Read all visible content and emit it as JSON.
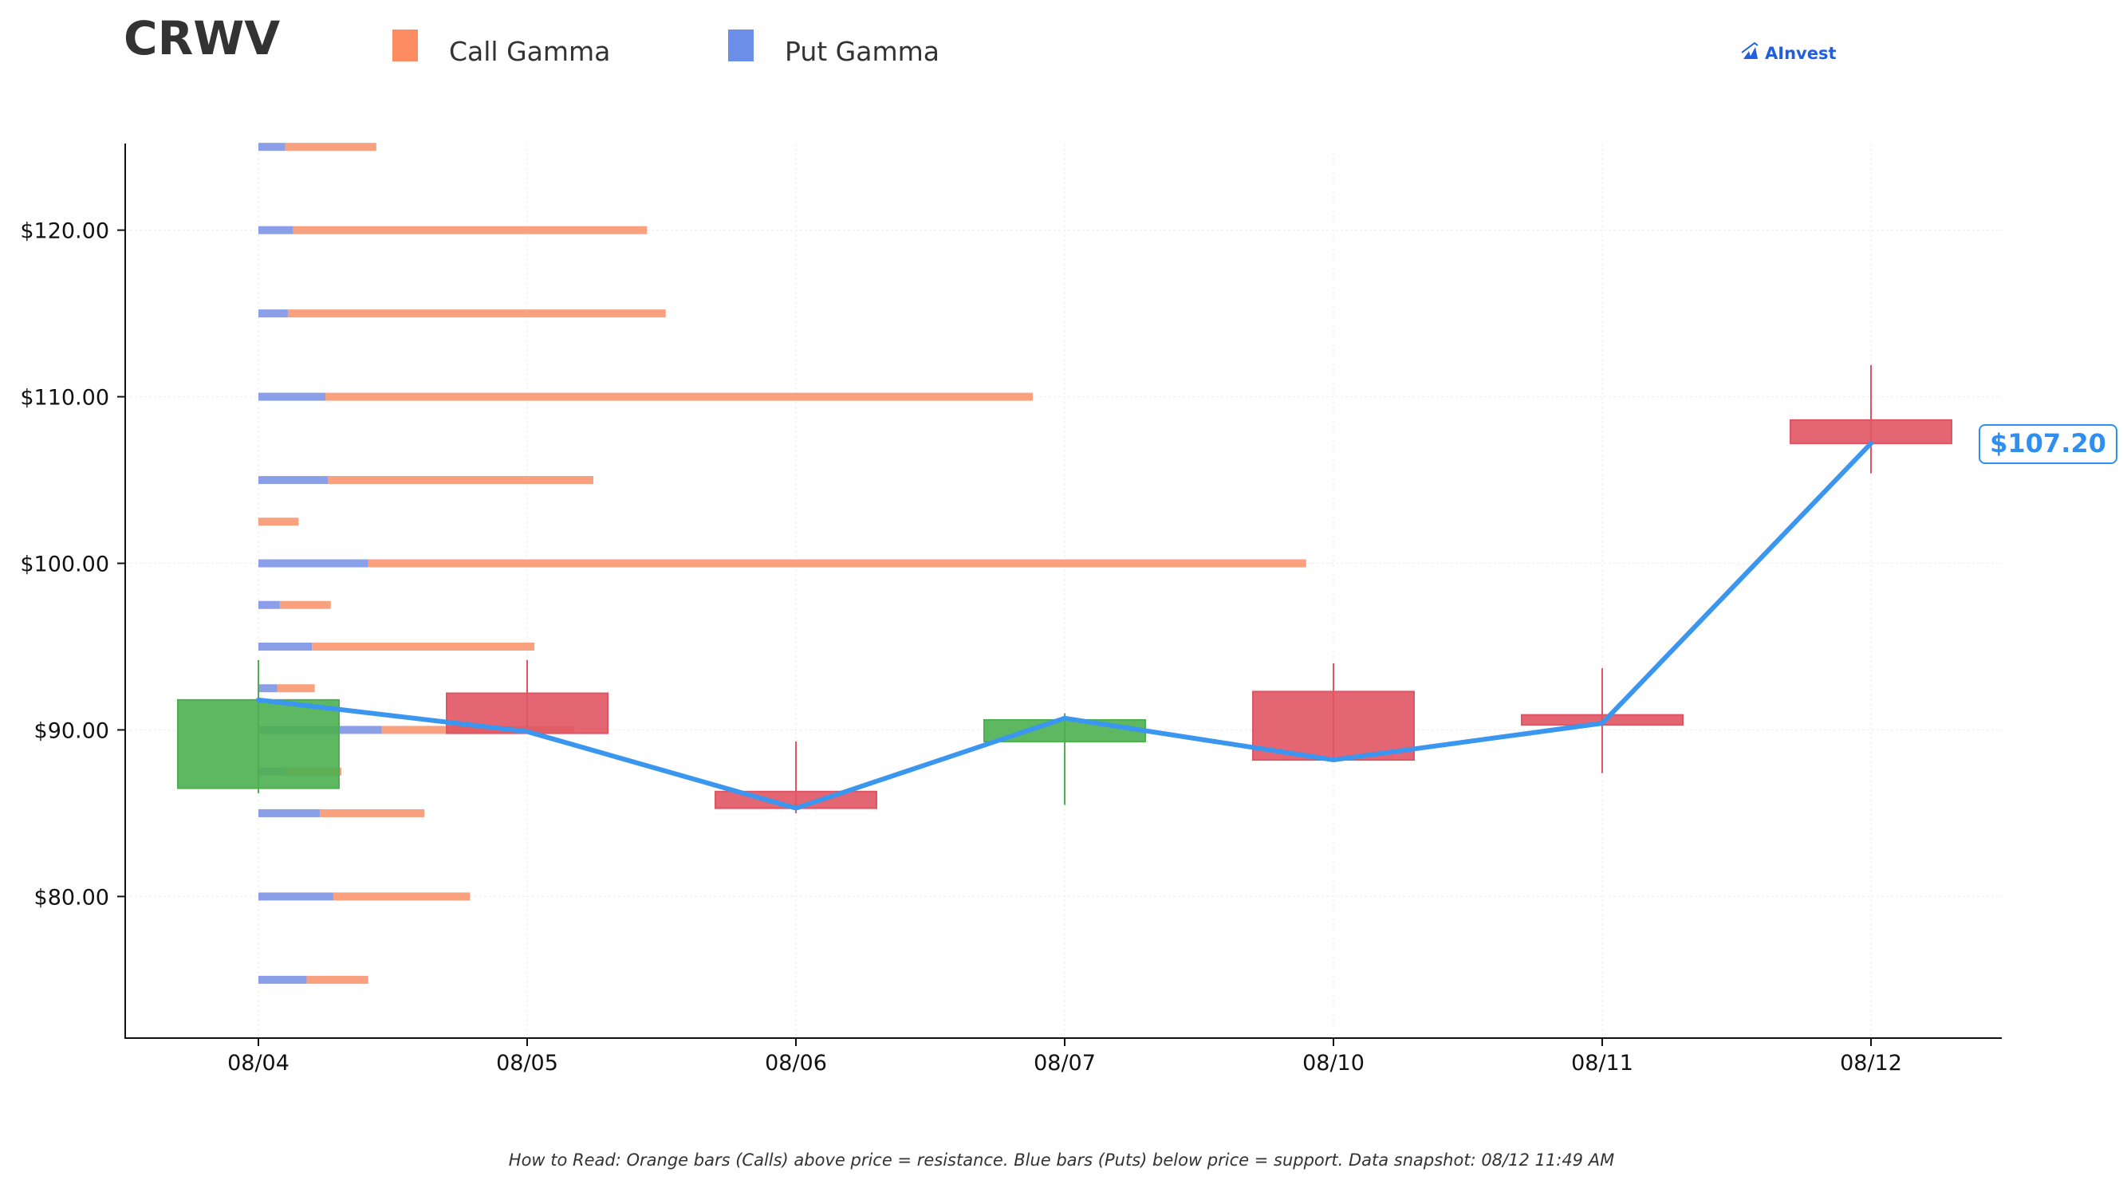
{
  "header": {
    "ticker": "CRWV",
    "legend": [
      {
        "label": "Call Gamma",
        "color": "#fc8d62"
      },
      {
        "label": "Put Gamma",
        "color": "#6b8ee8"
      }
    ],
    "brand": "AInvest"
  },
  "footnote": "How to Read: Orange bars (Calls) above price = resistance. Blue bars (Puts) below price = support. Data snapshot: 08/12 11:49 AM",
  "colors": {
    "up_candle": "#4caf50",
    "down_candle": "#e05563",
    "price_line": "#3a96ee",
    "call_bar": "#f9a07f",
    "put_bar": "#8a9fe8",
    "grid": "#eeeeee"
  },
  "chart_data": {
    "type": "candlestick",
    "title": "CRWV",
    "ylim": [
      71.5,
      125.2
    ],
    "y_ticks": [
      80,
      90,
      100,
      110,
      120
    ],
    "y_tick_labels": [
      "$80.00",
      "$90.00",
      "$100.00",
      "$110.00",
      "$120.00"
    ],
    "categories": [
      "08/04",
      "08/05",
      "08/06",
      "08/07",
      "08/10",
      "08/11",
      "08/12"
    ],
    "candles": [
      {
        "date": "08/04",
        "open": 86.5,
        "high": 94.2,
        "low": 86.2,
        "close": 91.8
      },
      {
        "date": "08/05",
        "open": 92.2,
        "high": 94.2,
        "low": 89.8,
        "close": 89.8
      },
      {
        "date": "08/06",
        "open": 86.3,
        "high": 89.3,
        "low": 85.0,
        "close": 85.3
      },
      {
        "date": "08/07",
        "open": 89.3,
        "high": 91.0,
        "low": 85.5,
        "close": 90.6
      },
      {
        "date": "08/10",
        "open": 92.3,
        "high": 94.0,
        "low": 88.2,
        "close": 88.2
      },
      {
        "date": "08/11",
        "open": 90.9,
        "high": 93.7,
        "low": 87.4,
        "close": 90.3
      },
      {
        "date": "08/12",
        "open": 108.6,
        "high": 111.9,
        "low": 105.4,
        "close": 107.2
      }
    ],
    "close_line": [
      91.8,
      89.9,
      85.3,
      90.7,
      88.2,
      90.4,
      107.2
    ],
    "last_price_label": "$107.20",
    "gamma_series": [
      {
        "name": "Call Gamma"
      },
      {
        "name": "Put Gamma"
      }
    ],
    "gamma_bars": [
      {
        "strike": 125,
        "put": 0.1,
        "call": 0.34
      },
      {
        "strike": 120,
        "put": 0.13,
        "call": 1.32
      },
      {
        "strike": 115,
        "put": 0.11,
        "call": 1.41
      },
      {
        "strike": 110,
        "put": 0.25,
        "call": 2.64
      },
      {
        "strike": 105,
        "put": 0.26,
        "call": 0.99
      },
      {
        "strike": 102.5,
        "put": 0.0,
        "call": 0.15
      },
      {
        "strike": 100,
        "put": 0.41,
        "call": 3.5
      },
      {
        "strike": 97.5,
        "put": 0.08,
        "call": 0.19
      },
      {
        "strike": 95,
        "put": 0.2,
        "call": 0.83
      },
      {
        "strike": 92.5,
        "put": 0.07,
        "call": 0.14
      },
      {
        "strike": 90,
        "put": 0.46,
        "call": 0.72
      },
      {
        "strike": 87.5,
        "put": 0.1,
        "call": 0.21
      },
      {
        "strike": 85,
        "put": 0.23,
        "call": 0.39
      },
      {
        "strike": 80,
        "put": 0.28,
        "call": 0.51
      },
      {
        "strike": 75,
        "put": 0.18,
        "call": 0.23
      }
    ],
    "grid": true,
    "legend_position": "top"
  }
}
